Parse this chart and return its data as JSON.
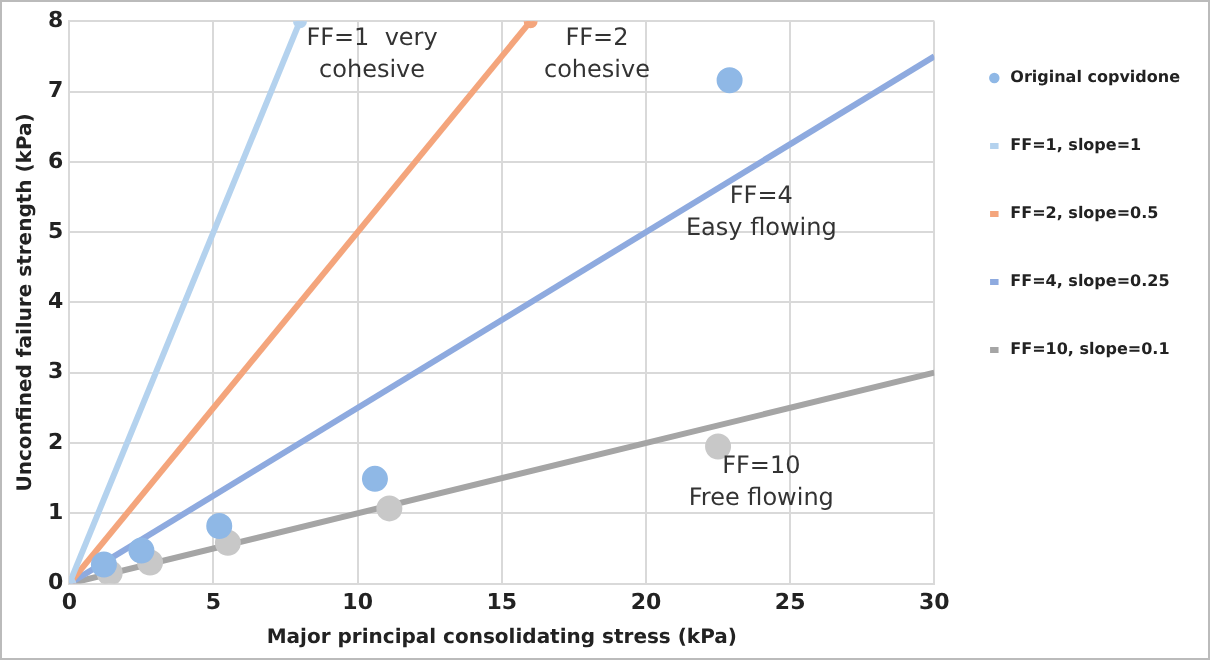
{
  "chart_data": {
    "type": "scatter",
    "xlabel": "Major principal consolidating stress (kPa)",
    "ylabel": "Unconfined failure strength (kPa)",
    "xlim": [
      0,
      30
    ],
    "xticks": [
      0,
      5,
      10,
      15,
      20,
      25,
      30
    ],
    "ylim": [
      0,
      8
    ],
    "yticks": [
      0,
      1,
      2,
      3,
      4,
      5,
      6,
      7,
      8
    ],
    "grid": true,
    "legend": "right",
    "series": [
      {
        "name": "Original copvidone",
        "type": "scatter",
        "marker": "circle",
        "color": "#8fb8e6",
        "x": [
          1.2,
          2.5,
          5.2,
          10.6,
          22.9
        ],
        "values": [
          0.27,
          0.47,
          0.82,
          1.49,
          7.16
        ]
      },
      {
        "type": "scatter",
        "marker": "circle",
        "color": "#c8c8c8",
        "x": [
          1.4,
          2.8,
          5.5,
          11.1,
          22.5
        ],
        "values": [
          0.15,
          0.3,
          0.58,
          1.07,
          1.95
        ]
      },
      {
        "name": "FF=1, slope=1",
        "type": "line",
        "marker": "circle",
        "color": "#b4d2ee",
        "x": [
          0,
          8
        ],
        "values": [
          0,
          8
        ]
      },
      {
        "name": "FF=2, slope=0.5",
        "type": "line",
        "marker": "circle",
        "color": "#f4a57c",
        "x": [
          0,
          16
        ],
        "values": [
          0,
          8
        ]
      },
      {
        "name": "FF=4, slope=0.25",
        "type": "line",
        "marker": "none",
        "color": "#8eaadf",
        "x": [
          0,
          30
        ],
        "values": [
          0,
          7.5
        ]
      },
      {
        "name": "FF=10, slope=0.1",
        "type": "line",
        "marker": "none",
        "color": "#a5a5a5",
        "x": [
          0,
          30
        ],
        "values": [
          0,
          3
        ]
      }
    ],
    "annotations": [
      "FF=1  very\ncohesive",
      "FF=2\ncohesive",
      "FF=4\nEasy flowing",
      "FF=10\nFree flowing"
    ]
  }
}
